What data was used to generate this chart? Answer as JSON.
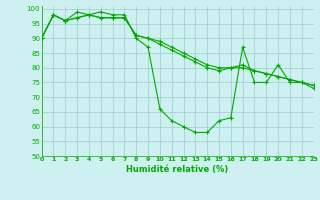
{
  "line1": [
    90,
    98,
    96,
    97,
    98,
    97,
    97,
    97,
    91,
    90,
    89,
    87,
    85,
    83,
    81,
    80,
    80,
    80,
    79,
    78,
    77,
    76,
    75,
    74
  ],
  "line2": [
    90,
    98,
    96,
    97,
    98,
    97,
    97,
    97,
    91,
    90,
    88,
    86,
    84,
    82,
    80,
    79,
    80,
    81,
    79,
    78,
    77,
    76,
    75,
    74
  ],
  "line3": [
    90,
    98,
    96,
    99,
    98,
    99,
    98,
    98,
    90,
    87,
    66,
    62,
    60,
    58,
    58,
    62,
    63,
    87,
    75,
    75,
    81,
    75,
    75,
    73
  ],
  "x": [
    0,
    1,
    2,
    3,
    4,
    5,
    6,
    7,
    8,
    9,
    10,
    11,
    12,
    13,
    14,
    15,
    16,
    17,
    18,
    19,
    20,
    21,
    22,
    23
  ],
  "xlim": [
    0,
    23
  ],
  "ylim": [
    50,
    101
  ],
  "yticks": [
    50,
    55,
    60,
    65,
    70,
    75,
    80,
    85,
    90,
    95,
    100
  ],
  "xlabel": "Humidité relative (%)",
  "line_color": "#00aa00",
  "bg_color": "#cff0f0",
  "grid_color": "#99cccc",
  "marker": "+",
  "marker_size": 3,
  "linewidth": 0.8
}
